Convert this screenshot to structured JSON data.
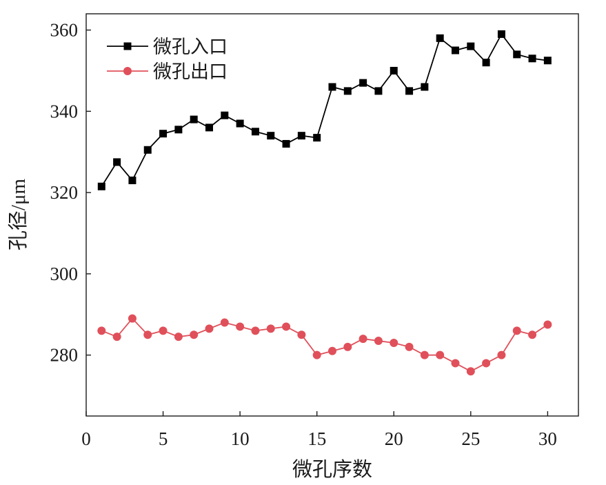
{
  "chart_data": {
    "type": "line",
    "xlabel": "微孔序数",
    "ylabel": "孔径/μm",
    "xlim": [
      0,
      32
    ],
    "ylim": [
      265,
      364
    ],
    "xticks": [
      0,
      5,
      10,
      15,
      20,
      25,
      30
    ],
    "yticks": [
      280,
      300,
      320,
      340,
      360
    ],
    "grid": false,
    "legend_position": "top-left",
    "x": [
      1,
      2,
      3,
      4,
      5,
      6,
      7,
      8,
      9,
      10,
      11,
      12,
      13,
      14,
      15,
      16,
      17,
      18,
      19,
      20,
      21,
      22,
      23,
      24,
      25,
      26,
      27,
      28,
      29,
      30
    ],
    "series": [
      {
        "name": "微孔入口",
        "color": "#000000",
        "marker": "square",
        "values": [
          321.5,
          327.5,
          323,
          330.5,
          334.5,
          335.5,
          338,
          336,
          339,
          337,
          335,
          334,
          332,
          334,
          333.5,
          346,
          345,
          347,
          345,
          350,
          345,
          346,
          358,
          355,
          356,
          352,
          359,
          354,
          353,
          352.5
        ]
      },
      {
        "name": "微孔出口",
        "color": "#e0505a",
        "marker": "circle",
        "values": [
          286,
          284.5,
          289,
          285,
          286,
          284.5,
          285,
          286.5,
          288,
          287,
          286,
          286.5,
          287,
          285,
          280,
          281,
          282,
          284,
          283.5,
          283,
          282,
          280,
          280,
          278,
          276,
          278,
          280,
          286,
          285,
          287.5
        ]
      }
    ]
  }
}
